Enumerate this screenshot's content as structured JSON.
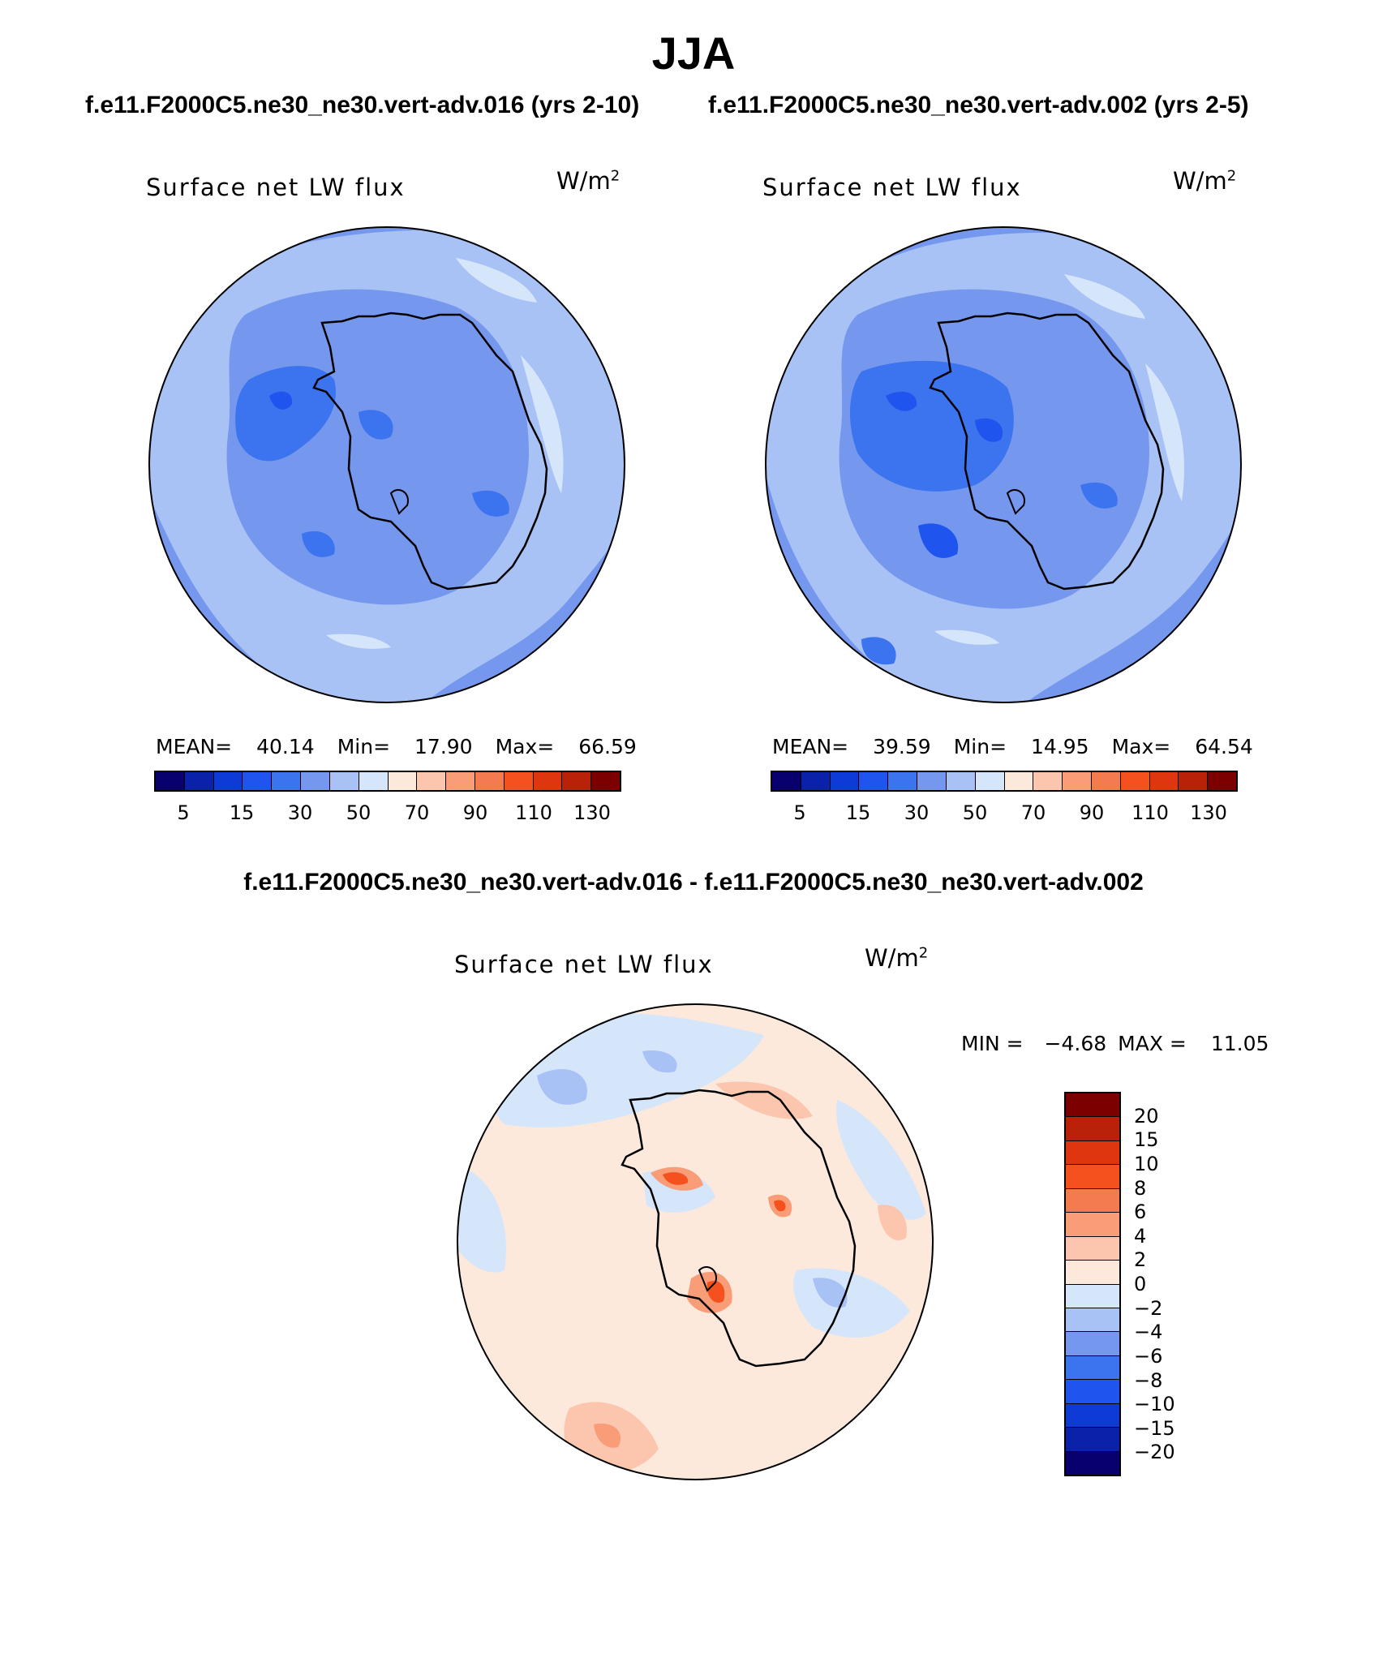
{
  "title": "JJA",
  "case1": "f.e11.F2000C5.ne30_ne30.vert-adv.016 (yrs 2-10)",
  "case2": "f.e11.F2000C5.ne30_ne30.vert-adv.002 (yrs 2-5)",
  "diff_title": "f.e11.F2000C5.ne30_ne30.vert-adv.016 - f.e11.F2000C5.ne30_ne30.vert-adv.002",
  "variable": "Surface net LW flux",
  "unit_base": "W/m",
  "unit_exp": "2",
  "panel1": {
    "mean_label": "MEAN=",
    "mean": "40.14",
    "min_label": "Min=",
    "min": "17.90",
    "max_label": "Max=",
    "max": "66.59"
  },
  "panel2": {
    "mean_label": "MEAN=",
    "mean": "39.59",
    "min_label": "Min=",
    "min": "14.95",
    "max_label": "Max=",
    "max": "64.54"
  },
  "diff": {
    "min_label": "MIN =",
    "min": "−4.68",
    "max_label": "MAX =",
    "max": "11.05"
  },
  "abs_colorbar": {
    "colors": [
      "#08006e",
      "#0a22aa",
      "#0e3bd6",
      "#1f55ee",
      "#3b74ee",
      "#7598ee",
      "#a8c2f6",
      "#d6e6fa",
      "#fde9dc",
      "#fbc6ad",
      "#f89d78",
      "#f47a4f",
      "#f4511e",
      "#e03610",
      "#b92208",
      "#7c0000"
    ],
    "tick_labels": [
      "5",
      "15",
      "30",
      "50",
      "70",
      "90",
      "110",
      "130"
    ]
  },
  "diff_colorbar": {
    "colors": [
      "#7c0000",
      "#b92208",
      "#e03610",
      "#f4511e",
      "#f47a4f",
      "#f89d78",
      "#fbc6ad",
      "#fde9dc",
      "#d6e6fa",
      "#a8c2f6",
      "#7598ee",
      "#3b74ee",
      "#1f55ee",
      "#0e3bd6",
      "#0a22aa",
      "#08006e"
    ],
    "tick_labels": [
      "20",
      "15",
      "10",
      "8",
      "6",
      "4",
      "2",
      "0",
      "−2",
      "−4",
      "−6",
      "−8",
      "−10",
      "−15",
      "−20"
    ]
  }
}
